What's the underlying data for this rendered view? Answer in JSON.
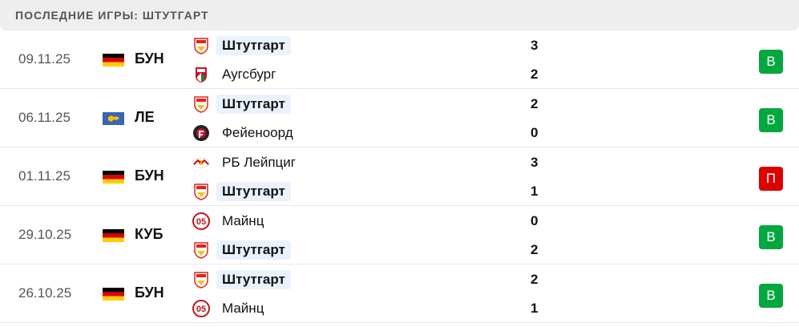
{
  "header": {
    "title": "ПОСЛЕДНИЕ ИГРЫ: ШТУТГАРТ"
  },
  "colors": {
    "win": "#00a83f",
    "loss": "#dc0000",
    "highlight": "#e9f2fd"
  },
  "matches": [
    {
      "date": "09.11.25",
      "flag": "germany",
      "competition": "БУН",
      "home": "Штутгарт",
      "home_logo": "vfb",
      "away": "Аугсбург",
      "away_logo": "fca",
      "home_score": "3",
      "away_score": "2",
      "result": "В",
      "result_type": "win",
      "highlight": "home"
    },
    {
      "date": "06.11.25",
      "flag": "europe",
      "competition": "ЛЕ",
      "home": "Штутгарт",
      "home_logo": "vfb",
      "away": "Фейеноорд",
      "away_logo": "feyenoord",
      "home_score": "2",
      "away_score": "0",
      "result": "В",
      "result_type": "win",
      "highlight": "home"
    },
    {
      "date": "01.11.25",
      "flag": "germany",
      "competition": "БУН",
      "home": "РБ Лейпциг",
      "home_logo": "rbl",
      "away": "Штутгарт",
      "away_logo": "vfb",
      "home_score": "3",
      "away_score": "1",
      "result": "П",
      "result_type": "loss",
      "highlight": "away"
    },
    {
      "date": "29.10.25",
      "flag": "germany",
      "competition": "КУБ",
      "home": "Майнц",
      "home_logo": "mainz",
      "away": "Штутгарт",
      "away_logo": "vfb",
      "home_score": "0",
      "away_score": "2",
      "result": "В",
      "result_type": "win",
      "highlight": "away"
    },
    {
      "date": "26.10.25",
      "flag": "germany",
      "competition": "БУН",
      "home": "Штутгарт",
      "home_logo": "vfb",
      "away": "Майнц",
      "away_logo": "mainz",
      "home_score": "2",
      "away_score": "1",
      "result": "В",
      "result_type": "win",
      "highlight": "home"
    }
  ]
}
